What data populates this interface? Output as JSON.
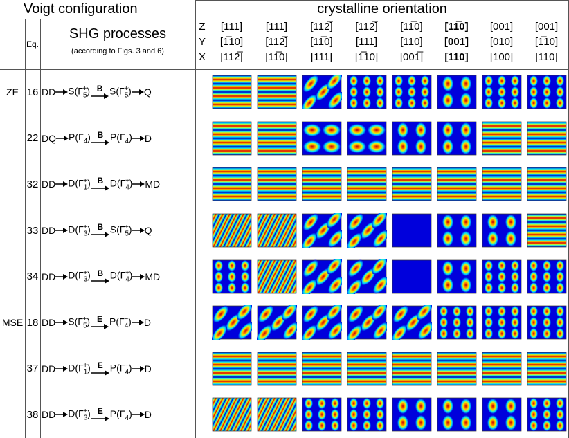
{
  "header": {
    "title": "Voigt configuration",
    "orientation_title": "crystalline orientation",
    "eq_label": "Eq.",
    "process_label": "SHG processes",
    "process_note": "(according to Figs. 3 and 6)",
    "axes": [
      "Z",
      "Y",
      "X"
    ]
  },
  "orientations": [
    {
      "Z": "[111]",
      "Y": "[1̅10]",
      "X": "[112̅]",
      "bold": false
    },
    {
      "Z": "[111]",
      "Y": "[112̅]",
      "X": "[11̅0]",
      "bold": false
    },
    {
      "Z": "[112̅]",
      "Y": "[11̅0]",
      "X": "[111]",
      "bold": false
    },
    {
      "Z": "[112̅]",
      "Y": "[111]",
      "X": "[1̅10]",
      "bold": false
    },
    {
      "Z": "[11̅0]",
      "Y": "[110]",
      "X": "[001̅]",
      "bold": false
    },
    {
      "Z": "[11̅0]",
      "Y": "[001]",
      "X": "[110]",
      "bold": true
    },
    {
      "Z": "[001]",
      "Y": "[010]",
      "X": "[100]",
      "bold": false
    },
    {
      "Z": "[001]",
      "Y": "[1̅10]",
      "X": "[110]",
      "bold": false
    }
  ],
  "groups": [
    {
      "label": "ZE",
      "rows": [
        {
          "eq": "16",
          "from": "DD",
          "via": {
            "pre": "S(Γ",
            "sub": "5",
            "sup": "+",
            "post": ")"
          },
          "field": "B",
          "to_state": {
            "pre": "S(Γ",
            "sub": "5",
            "sup": "+",
            "post": ")"
          },
          "to": "Q"
        },
        {
          "eq": "22",
          "from": "DQ",
          "via": {
            "pre": "P(Γ",
            "sub": "4",
            "post": ")"
          },
          "field": "B",
          "to_state": {
            "pre": "P(Γ",
            "sub": "4",
            "post": ")"
          },
          "to": "D"
        },
        {
          "eq": "32",
          "from": "DD",
          "via": {
            "pre": "D(Γ",
            "sub": "1",
            "sup": "+",
            "post": ")"
          },
          "field": "B",
          "to_state": {
            "pre": "D(Γ",
            "sub": "4",
            "sup": "+",
            "post": ")"
          },
          "to": "MD"
        },
        {
          "eq": "33",
          "from": "DD",
          "via": {
            "pre": "D(Γ",
            "sub": "3",
            "sup": "+",
            "post": ")"
          },
          "field": "B",
          "to_state": {
            "pre": "S(Γ",
            "sub": "5",
            "sup": "+",
            "post": ")"
          },
          "to": "Q"
        },
        {
          "eq": "34",
          "from": "DD",
          "via": {
            "pre": "D(Γ",
            "sub": "3",
            "sup": "+",
            "post": ")"
          },
          "field": "B",
          "to_state": {
            "pre": "D(Γ",
            "sub": "4",
            "sup": "+",
            "post": ")"
          },
          "to": "MD"
        }
      ]
    },
    {
      "label": "MSE",
      "rows": [
        {
          "eq": "18",
          "from": "DD",
          "via": {
            "pre": "S(Γ",
            "sub": "5",
            "sup": "+",
            "post": ")"
          },
          "field": "E",
          "to_state": {
            "pre": "P(Γ",
            "sub": "4",
            "sup": "−",
            "post": ")"
          },
          "to": "D"
        },
        {
          "eq": "37",
          "from": "DD",
          "via": {
            "pre": "D(Γ",
            "sub": "1",
            "sup": "+",
            "post": ")"
          },
          "field": "E",
          "to_state": {
            "pre": "P(Γ",
            "sub": "4",
            "sup": "−",
            "post": ")"
          },
          "to": "D"
        },
        {
          "eq": "38",
          "from": "DD",
          "via": {
            "pre": "D(Γ",
            "sub": "3",
            "sup": "+",
            "post": ")"
          },
          "field": "E",
          "to_state": {
            "pre": "P(Γ",
            "sub": "4",
            "post": ")"
          },
          "to": "D"
        }
      ]
    }
  ]
}
